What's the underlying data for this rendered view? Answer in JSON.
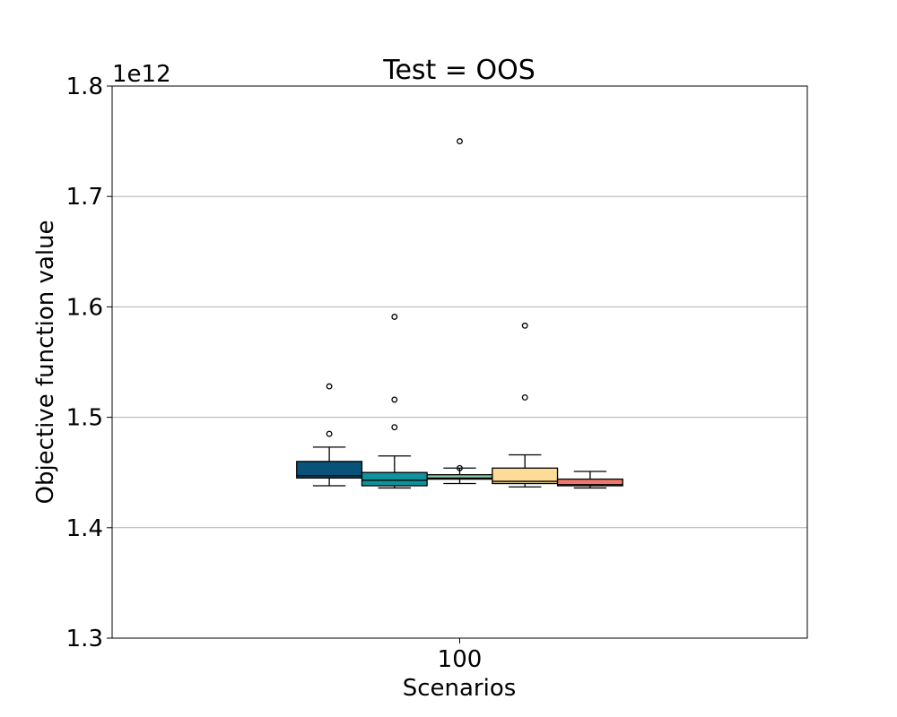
{
  "chart_data": {
    "type": "box",
    "title": "Test = OOS",
    "xlabel": "Scenarios",
    "ylabel": "Objective function value",
    "y_offset_label": "1e12",
    "categories": [
      "100"
    ],
    "ylim": [
      1.3,
      1.8
    ],
    "yticks": [
      1.3,
      1.4,
      1.5,
      1.6,
      1.7,
      1.8
    ],
    "ytick_labels": [
      "1.3",
      "1.4",
      "1.5",
      "1.6",
      "1.7",
      "1.8"
    ],
    "grid": "y",
    "legend": "none",
    "boxes": [
      {
        "color": "#08537a",
        "whislo": 1.438,
        "q1": 1.445,
        "med": 1.447,
        "q3": 1.46,
        "whishi": 1.473,
        "fliers": [
          1.485,
          1.528
        ]
      },
      {
        "color": "#0e939d",
        "whislo": 1.436,
        "q1": 1.438,
        "med": 1.443,
        "q3": 1.45,
        "whishi": 1.465,
        "fliers": [
          1.491,
          1.516,
          1.591
        ]
      },
      {
        "color": "#8cc9a2",
        "whislo": 1.44,
        "q1": 1.444,
        "med": 1.445,
        "q3": 1.448,
        "whishi": 1.454,
        "fliers": [
          1.454,
          1.75
        ]
      },
      {
        "color": "#fcdc96",
        "whislo": 1.437,
        "q1": 1.44,
        "med": 1.442,
        "q3": 1.454,
        "whishi": 1.466,
        "fliers": [
          1.518,
          1.583
        ]
      },
      {
        "color": "#f0766b",
        "whislo": 1.436,
        "q1": 1.438,
        "med": 1.439,
        "q3": 1.444,
        "whishi": 1.451,
        "fliers": []
      }
    ]
  }
}
